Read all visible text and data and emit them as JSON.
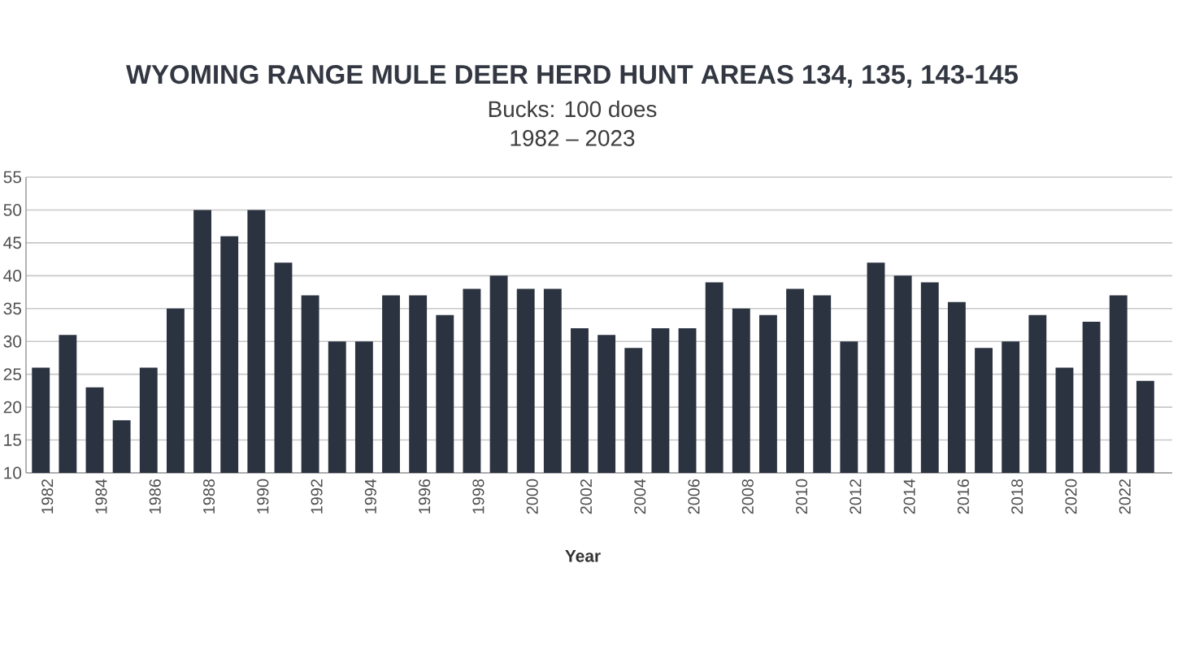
{
  "chart_data": {
    "type": "bar",
    "title": "WYOMING RANGE MULE DEER HERD HUNT AREAS 134, 135, 143-145",
    "subtitle": "Bucks: 100 does",
    "annotations": [
      "1982 – 2023"
    ],
    "xlabel": "Year",
    "categories": [
      "1982",
      null,
      "1984",
      null,
      "1986",
      null,
      "1988",
      null,
      "1990",
      null,
      "1992",
      null,
      "1994",
      null,
      "1996",
      null,
      "1998",
      null,
      "2000",
      null,
      "2002",
      null,
      "2004",
      null,
      "2006",
      null,
      "2008",
      null,
      "2010",
      null,
      "2012",
      null,
      "2014",
      null,
      "2016",
      null,
      "2018",
      null,
      "2020",
      null,
      "2022",
      null
    ],
    "values": [
      26,
      31,
      23,
      18,
      26,
      35,
      50,
      46,
      50,
      42,
      37,
      30,
      30,
      37,
      37,
      34,
      38,
      40,
      38,
      38,
      32,
      31,
      29,
      32,
      32,
      39,
      35,
      34,
      38,
      37,
      30,
      42,
      40,
      39,
      36,
      29,
      30,
      34,
      26,
      33,
      37,
      24
    ],
    "color": "#2b3340",
    "ylim": [
      10,
      55
    ],
    "yticks": [
      10,
      15,
      20,
      25,
      30,
      35,
      40,
      45,
      50,
      55
    ],
    "grid": "y"
  }
}
